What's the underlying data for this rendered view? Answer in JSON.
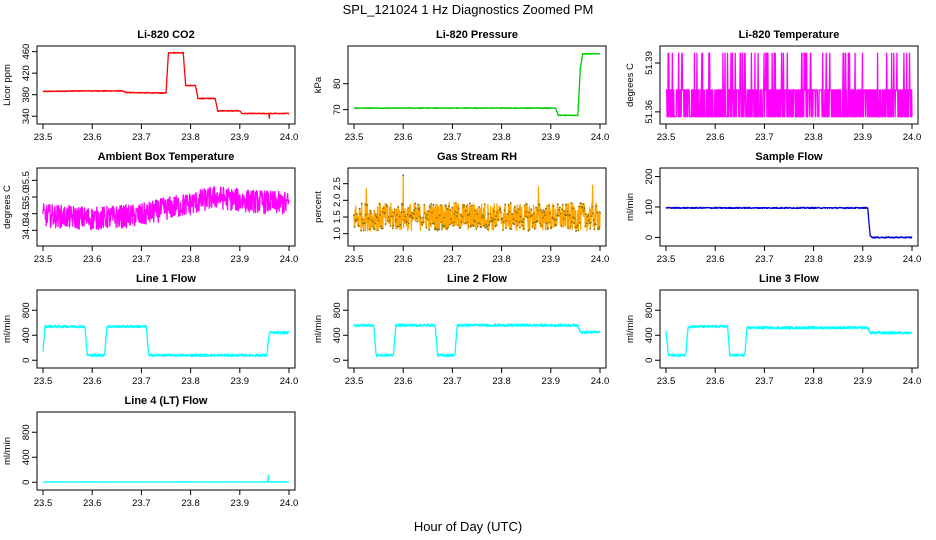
{
  "figure": {
    "title": "SPL_121024  1 Hz Diagnostics Zoomed PM",
    "xlabel": "Hour of Day (UTC)"
  },
  "chart_data": [
    {
      "type": "line",
      "title": "Li-820 CO2",
      "ylabel": "Licor ppm",
      "color": "#ff0000",
      "xlim": [
        23.5,
        24.0
      ],
      "xticks": [
        "23.5",
        "23.6",
        "23.7",
        "23.8",
        "23.9",
        "24.0"
      ],
      "ylim": [
        333,
        463
      ],
      "yticks": [
        "340",
        "380",
        "420",
        "460"
      ],
      "ytick_values": [
        340,
        380,
        420,
        460
      ],
      "style": "step",
      "noise": 0.8,
      "x": [
        23.5,
        23.58,
        23.66,
        23.67,
        23.75,
        23.755,
        23.785,
        23.79,
        23.81,
        23.815,
        23.85,
        23.855,
        23.9,
        23.905,
        24.0
      ],
      "y": [
        386,
        387,
        387,
        384,
        383,
        458,
        458,
        397,
        397,
        373,
        373,
        350,
        350,
        345,
        345
      ],
      "spikes": [
        {
          "x": 23.96,
          "y": 358
        },
        {
          "x": 23.96,
          "y": 336
        }
      ]
    },
    {
      "type": "line",
      "title": "Li-820 Pressure",
      "ylabel": "kPa",
      "color": "#00cc00",
      "xlim": [
        23.5,
        24.0
      ],
      "xticks": [
        "23.5",
        "23.6",
        "23.7",
        "23.8",
        "23.9",
        "24.0"
      ],
      "ylim": [
        66,
        93
      ],
      "yticks": [
        "70",
        "80"
      ],
      "ytick_values": [
        70,
        80
      ],
      "style": "step",
      "noise": 0.15,
      "x": [
        23.5,
        23.91,
        23.915,
        23.955,
        23.96,
        23.965,
        23.97,
        24.0
      ],
      "y": [
        70.6,
        70.6,
        67.8,
        67.8,
        86,
        91.5,
        91.5,
        91.5
      ]
    },
    {
      "type": "line",
      "title": "Li-820 Temperature",
      "ylabel": "degrees C",
      "color": "#ff00ff",
      "xlim": [
        23.5,
        24.0
      ],
      "xticks": [
        "23.5",
        "23.6",
        "23.7",
        "23.8",
        "23.9",
        "24.0"
      ],
      "ylim": [
        51.355,
        51.398
      ],
      "yticks": [
        "51.36",
        "51.39"
      ],
      "ytick_values": [
        51.36,
        51.39
      ],
      "style": "quantized",
      "levels": [
        51.357,
        51.3735,
        51.396
      ],
      "level_weights": [
        0.45,
        0.45,
        0.1
      ]
    },
    {
      "type": "line",
      "title": "Ambient Box Temperature",
      "ylabel": "degrees C",
      "color": "#ff00ff",
      "xlim": [
        23.5,
        24.0
      ],
      "xticks": [
        "23.5",
        "23.6",
        "23.7",
        "23.8",
        "23.9",
        "24.0"
      ],
      "ylim": [
        33.65,
        35.75
      ],
      "yticks": [
        "34.0",
        "34.5",
        "35.0",
        "35.5"
      ],
      "ytick_values": [
        34.0,
        34.5,
        35.0,
        35.5
      ],
      "style": "noisy",
      "noise": 0.35,
      "x": [
        23.5,
        23.6,
        23.7,
        23.75,
        23.8,
        23.85,
        23.9,
        23.95,
        24.0
      ],
      "y": [
        34.45,
        34.35,
        34.45,
        34.65,
        34.8,
        35.0,
        34.9,
        34.85,
        34.8
      ]
    },
    {
      "type": "line",
      "title": "Gas Stream RH",
      "ylabel": "percent",
      "color": "#ffa500",
      "xlim": [
        23.5,
        24.0
      ],
      "xticks": [
        "23.5",
        "23.6",
        "23.7",
        "23.8",
        "23.9",
        "24.0"
      ],
      "ylim": [
        0.75,
        2.85
      ],
      "yticks": [
        "1.0",
        "1.5",
        "2.0",
        "2.5"
      ],
      "ytick_values": [
        1.0,
        1.5,
        2.0,
        2.5
      ],
      "style": "noisy",
      "noise": 0.42,
      "dots": true,
      "x": [
        23.5,
        23.6,
        23.7,
        23.8,
        23.9,
        24.0
      ],
      "y": [
        1.5,
        1.5,
        1.52,
        1.5,
        1.5,
        1.5
      ],
      "spikes": [
        {
          "x": 23.6,
          "y": 2.75
        },
        {
          "x": 23.875,
          "y": 2.4
        },
        {
          "x": 23.525,
          "y": 2.35
        },
        {
          "x": 23.985,
          "y": 2.45
        }
      ]
    },
    {
      "type": "line",
      "title": "Sample Flow",
      "ylabel": "ml/min",
      "color": "#0000cc",
      "xlim": [
        23.5,
        24.0
      ],
      "xticks": [
        "23.5",
        "23.6",
        "23.7",
        "23.8",
        "23.9",
        "24.0"
      ],
      "ylim": [
        -15,
        215
      ],
      "yticks": [
        "0",
        "100",
        "200"
      ],
      "ytick_values": [
        0,
        100,
        200
      ],
      "style": "step",
      "noise": 2,
      "x": [
        23.5,
        23.91,
        23.915,
        23.92,
        24.0
      ],
      "y": [
        97,
        97,
        5,
        0,
        0
      ]
    },
    {
      "type": "line",
      "title": "Line 1 Flow",
      "ylabel": "ml/min",
      "color": "#00ffff",
      "xlim": [
        23.5,
        24.0
      ],
      "xticks": [
        "23.5",
        "23.6",
        "23.7",
        "23.8",
        "23.9",
        "24.0"
      ],
      "ylim": [
        -60,
        1060
      ],
      "yticks": [
        "0",
        "400",
        "800"
      ],
      "ytick_values": [
        0,
        400,
        800
      ],
      "style": "step",
      "noise": 20,
      "x": [
        23.5,
        23.504,
        23.585,
        23.59,
        23.625,
        23.63,
        23.71,
        23.715,
        23.955,
        23.96,
        24.0
      ],
      "y": [
        150,
        540,
        540,
        80,
        80,
        540,
        540,
        80,
        80,
        440,
        440
      ]
    },
    {
      "type": "line",
      "title": "Line 2 Flow",
      "ylabel": "ml/min",
      "color": "#00ffff",
      "xlim": [
        23.5,
        24.0
      ],
      "xticks": [
        "23.5",
        "23.6",
        "23.7",
        "23.8",
        "23.9",
        "24.0"
      ],
      "ylim": [
        -60,
        1060
      ],
      "yticks": [
        "0",
        "400",
        "800"
      ],
      "ytick_values": [
        0,
        400,
        800
      ],
      "style": "step",
      "noise": 20,
      "x": [
        23.5,
        23.54,
        23.545,
        23.58,
        23.585,
        23.665,
        23.67,
        23.705,
        23.71,
        23.955,
        23.96,
        24.0
      ],
      "y": [
        560,
        560,
        80,
        80,
        560,
        560,
        80,
        80,
        560,
        560,
        450,
        450
      ]
    },
    {
      "type": "line",
      "title": "Line 3 Flow",
      "ylabel": "ml/min",
      "color": "#00ffff",
      "xlim": [
        23.5,
        24.0
      ],
      "xticks": [
        "23.5",
        "23.6",
        "23.7",
        "23.8",
        "23.9",
        "24.0"
      ],
      "ylim": [
        -60,
        1060
      ],
      "yticks": [
        "0",
        "400",
        "800"
      ],
      "ytick_values": [
        0,
        400,
        800
      ],
      "style": "step",
      "noise": 20,
      "x": [
        23.5,
        23.505,
        23.54,
        23.545,
        23.625,
        23.63,
        23.66,
        23.665,
        23.91,
        23.915,
        24.0
      ],
      "y": [
        460,
        80,
        80,
        540,
        540,
        80,
        80,
        520,
        520,
        440,
        440
      ]
    },
    {
      "type": "line",
      "title": "Line 4 (LT) Flow",
      "ylabel": "ml/min",
      "color": "#00ffff",
      "xlim": [
        23.5,
        24.0
      ],
      "xticks": [
        "23.5",
        "23.6",
        "23.7",
        "23.8",
        "23.9",
        "24.0"
      ],
      "ylim": [
        -60,
        1060
      ],
      "yticks": [
        "0",
        "400",
        "800"
      ],
      "ytick_values": [
        0,
        400,
        800
      ],
      "style": "step",
      "noise": 3,
      "x": [
        23.5,
        24.0
      ],
      "y": [
        5,
        5
      ],
      "spikes": [
        {
          "x": 23.958,
          "y": 110
        }
      ]
    }
  ]
}
